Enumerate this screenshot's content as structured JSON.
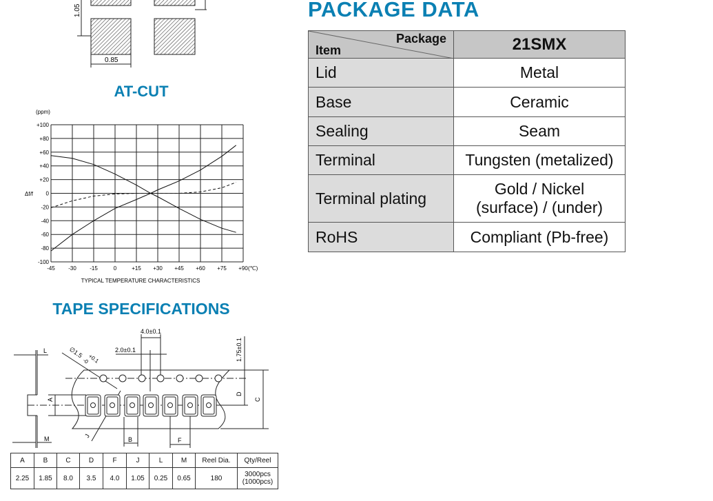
{
  "footprint": {
    "dim_vertical": "1.05",
    "dim_horizontal": "0.85"
  },
  "package_data": {
    "title": "PACKAGE DATA",
    "header": {
      "package_label": "Package",
      "item_label": "Item",
      "model": "21SMX"
    },
    "rows": [
      {
        "item": "Lid",
        "value": "Metal"
      },
      {
        "item": "Base",
        "value": "Ceramic"
      },
      {
        "item": "Sealing",
        "value": "Seam"
      },
      {
        "item": "Terminal",
        "value": "Tungsten (metalized)"
      },
      {
        "item": "Terminal plating",
        "value": "Gold / Nickel",
        "value2": "(surface) / (under)"
      },
      {
        "item": "RoHS",
        "value": "Compliant (Pb-free)"
      }
    ]
  },
  "at_cut": {
    "title": "AT-CUT"
  },
  "chart_data": {
    "type": "line",
    "title": "",
    "xlabel": "TYPICAL TEMPERATURE CHARACTERISTICS",
    "ylabel": "Δf/f",
    "y_unit": "(ppm)",
    "x_unit": "(℃)",
    "xlim": [
      -45,
      90
    ],
    "ylim": [
      -100,
      100
    ],
    "grid": true,
    "x_ticks": [
      "-45",
      "-30",
      "-15",
      "0",
      "+15",
      "+30",
      "+45",
      "+60",
      "+75",
      "+90"
    ],
    "x_tick_values": [
      -45,
      -30,
      -15,
      0,
      15,
      30,
      45,
      60,
      75,
      90
    ],
    "y_ticks": [
      "+100",
      "+80",
      "+60",
      "+40",
      "+20",
      "0",
      "-20",
      "-40",
      "-60",
      "-80",
      "-100"
    ],
    "y_tick_values": [
      100,
      80,
      60,
      40,
      20,
      0,
      -20,
      -40,
      -60,
      -80,
      -100
    ],
    "series": [
      {
        "style": "solid",
        "x": [
          -45,
          -30,
          -15,
          0,
          15,
          25,
          30,
          45,
          60,
          75,
          85
        ],
        "y": [
          55,
          51,
          42,
          28,
          12,
          0,
          -5,
          -22,
          -38,
          -51,
          -57
        ]
      },
      {
        "style": "solid",
        "x": [
          -45,
          -30,
          -15,
          0,
          15,
          25,
          30,
          45,
          60,
          75,
          85
        ],
        "y": [
          -84,
          -60,
          -40,
          -22,
          -9,
          0,
          5,
          18,
          34,
          54,
          70
        ]
      },
      {
        "style": "dashed",
        "x": [
          -45,
          -30,
          -15,
          0,
          15,
          30,
          45,
          60,
          75,
          85
        ],
        "y": [
          -21,
          -11,
          -4,
          -1,
          0,
          0,
          0,
          2,
          8,
          16
        ]
      }
    ]
  },
  "tape": {
    "title": "TAPE SPECIFICATIONS",
    "labels": {
      "L": "L",
      "M": "M",
      "A": "A",
      "B": "B",
      "C": "C",
      "D": "D",
      "F": "F",
      "J": "J",
      "hole_dia": "∅1.5",
      "hole_tol_plus": "+0.1",
      "hole_tol_minus": "-0",
      "pitch_4": "4.0±0.1",
      "pitch_2": "2.0±0.1",
      "edge": "1.75±0.1"
    },
    "columns": [
      "A",
      "B",
      "C",
      "D",
      "F",
      "J",
      "L",
      "M",
      "Reel Dia.",
      "Qty/Reel"
    ],
    "values": [
      "2.25",
      "1.85",
      "8.0",
      "3.5",
      "4.0",
      "1.05",
      "0.25",
      "0.65",
      "180",
      "3000pcs"
    ],
    "qty_alt": "(1000pcs)"
  }
}
